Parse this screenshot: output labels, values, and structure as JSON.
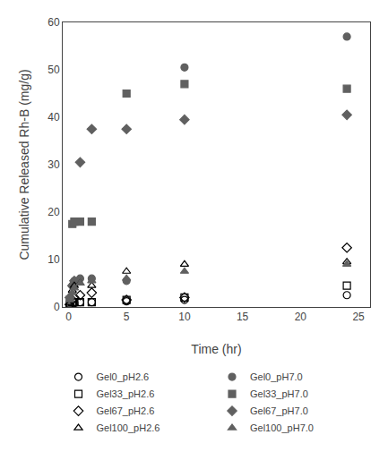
{
  "chart_data": {
    "type": "scatter",
    "xlabel": "Time (hr)",
    "ylabel": "Cumulative Released Rh-B (mg/g)",
    "x": [
      0.1,
      0.33,
      0.5,
      1,
      2,
      5,
      10,
      24
    ],
    "series": [
      {
        "name": "Gel0_pH2.6",
        "values": [
          0.3,
          0.5,
          0.8,
          1.0,
          1.0,
          1.2,
          1.5,
          2.5
        ],
        "marker": "circle-open",
        "color": "black"
      },
      {
        "name": "Gel0_pH7.0",
        "values": [
          0.8,
          4.5,
          5.5,
          6.0,
          6.0,
          5.5,
          50.5,
          57.0
        ],
        "marker": "circle",
        "color": "#606060"
      },
      {
        "name": "Gel33_pH2.6",
        "values": [
          0.3,
          1.0,
          1.0,
          1.0,
          1.0,
          1.5,
          2.0,
          4.5
        ],
        "marker": "square-open",
        "color": "black"
      },
      {
        "name": "Gel33_pH7.0",
        "values": [
          1.5,
          17.5,
          18.0,
          18.0,
          18.0,
          45.0,
          47.0,
          46.0
        ],
        "marker": "square",
        "color": "#606060"
      },
      {
        "name": "Gel67_pH2.6",
        "values": [
          0.5,
          1.5,
          2.0,
          2.5,
          3.0,
          1.5,
          2.0,
          12.5
        ],
        "marker": "diamond-open",
        "color": "black"
      },
      {
        "name": "Gel67_pH7.0",
        "values": [
          2.0,
          4.5,
          5.5,
          30.5,
          37.5,
          37.5,
          39.5,
          40.5
        ],
        "marker": "diamond",
        "color": "#606060"
      },
      {
        "name": "Gel100_pH2.6",
        "values": [
          0.8,
          3.5,
          4.5,
          5.0,
          4.5,
          7.5,
          9.0,
          9.5
        ],
        "marker": "triangle-up-open",
        "color": "black"
      },
      {
        "name": "Gel100_pH7.0",
        "values": [
          1.5,
          3.0,
          4.0,
          5.0,
          5.5,
          6.0,
          7.5,
          9.0
        ],
        "marker": "triangle-up",
        "color": "#606060"
      }
    ],
    "xlim": [
      -0.5,
      26
    ],
    "ylim": [
      0,
      60
    ],
    "xticks": [
      0,
      5,
      10,
      15,
      20,
      25
    ],
    "yticks": [
      0,
      10,
      20,
      30,
      40,
      50,
      60
    ],
    "grid": false,
    "legend": "bottom"
  }
}
